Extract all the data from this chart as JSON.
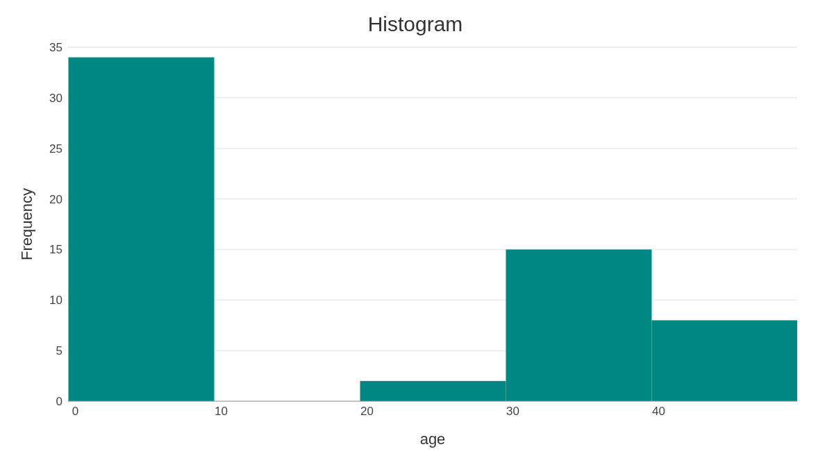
{
  "chart_data": {
    "type": "histogram",
    "title": "Histogram",
    "xlabel": "age",
    "ylabel": "Frequency",
    "bins": [
      -0.5,
      9.5,
      19.5,
      29.5,
      39.5,
      49.5
    ],
    "values": [
      34,
      0,
      2,
      15,
      8
    ],
    "color": "#008784",
    "xlim": [
      -0.5,
      49.5
    ],
    "xticks": [
      0,
      10,
      20,
      30,
      40
    ],
    "ylim": [
      0,
      35
    ],
    "yticks": [
      0,
      5,
      10,
      15,
      20,
      25,
      30,
      35
    ],
    "grid": "y"
  }
}
